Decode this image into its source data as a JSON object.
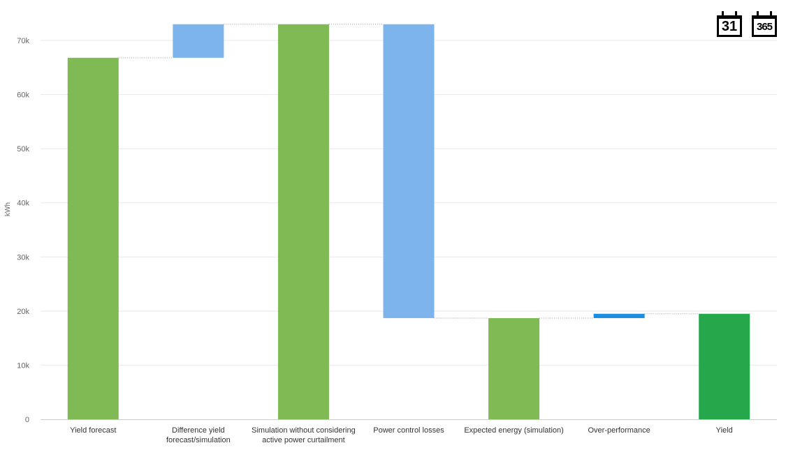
{
  "toolbar": {
    "icons": [
      {
        "name": "calendar-month-icon",
        "label": "31"
      },
      {
        "name": "calendar-year-icon",
        "label": "365"
      }
    ]
  },
  "chart_data": {
    "type": "waterfall",
    "ylabel": "kWh",
    "ylim": [
      0,
      73000
    ],
    "yticks": [
      0,
      10000,
      20000,
      30000,
      40000,
      50000,
      60000,
      70000
    ],
    "ytick_labels": [
      "0",
      "10k",
      "20k",
      "30k",
      "40k",
      "50k",
      "60k",
      "70k"
    ],
    "grid": true,
    "categories": [
      "Yield forecast",
      "Difference yield forecast/simulation",
      "Simulation without considering active power curtailment",
      "Power control losses",
      "Expected energy (simulation)",
      "Over-performance",
      "Yield"
    ],
    "category_lines": [
      [
        "Yield forecast"
      ],
      [
        "Difference yield",
        "forecast/simulation"
      ],
      [
        "Simulation without considering",
        "active power curtailment"
      ],
      [
        "Power control losses"
      ],
      [
        "Expected energy (simulation)"
      ],
      [
        "Over-performance"
      ],
      [
        "Yield"
      ]
    ],
    "bars": [
      {
        "kind": "total",
        "start": 0,
        "end": 66800,
        "color": "#7fba55"
      },
      {
        "kind": "delta",
        "start": 66800,
        "end": 73000,
        "color": "#7db4ec"
      },
      {
        "kind": "total",
        "start": 0,
        "end": 73000,
        "color": "#7fba55"
      },
      {
        "kind": "delta",
        "start": 73000,
        "end": 18700,
        "color": "#7db4ec"
      },
      {
        "kind": "total",
        "start": 0,
        "end": 18700,
        "color": "#7fba55"
      },
      {
        "kind": "delta",
        "start": 18700,
        "end": 19500,
        "color": "#1b8ee0"
      },
      {
        "kind": "total",
        "start": 0,
        "end": 19500,
        "color": "#25a84c"
      }
    ]
  }
}
